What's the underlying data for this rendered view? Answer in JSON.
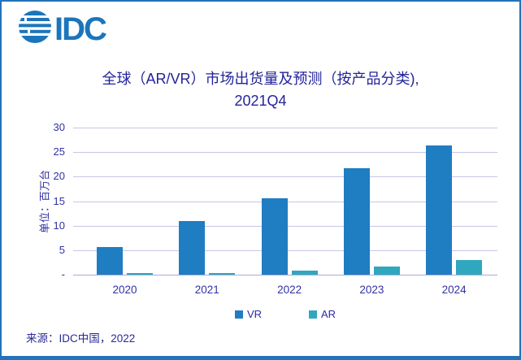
{
  "logo": {
    "text": "IDC",
    "color": "#1C75BB"
  },
  "title": {
    "line1": "全球（AR/VR）市场出货量及预测（按产品分类),",
    "line2": "2021Q4"
  },
  "source": "来源：IDC中国，2022",
  "chart_data": {
    "type": "bar",
    "title": "全球（AR/VR）市场出货量及预测（按产品分类), 2021Q4",
    "categories": [
      "2020",
      "2021",
      "2022",
      "2023",
      "2024"
    ],
    "series": [
      {
        "name": "VR",
        "color": "#1F7DC2",
        "values": [
          5.6,
          10.9,
          15.5,
          21.7,
          26.4
        ]
      },
      {
        "name": "AR",
        "color": "#2FA7BE",
        "values": [
          0.3,
          0.4,
          0.8,
          1.6,
          3.0
        ]
      }
    ],
    "xlabel": "",
    "ylabel": "单位：百万台",
    "ylim": [
      0,
      30
    ],
    "ytick_step": 5,
    "zero_tick_label": "-",
    "grid": true,
    "legend_position": "bottom",
    "colors": {
      "grid": "#C6C6E6",
      "text": "#3131A3",
      "border": "#2373B9"
    }
  }
}
